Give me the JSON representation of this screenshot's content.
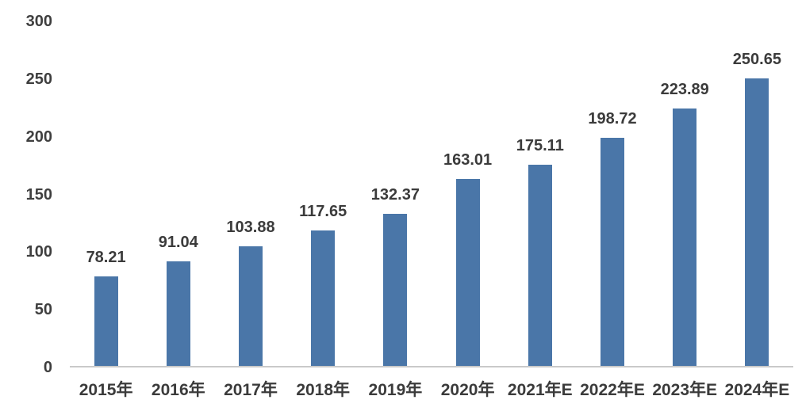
{
  "chart_data": {
    "type": "bar",
    "categories": [
      "2015年",
      "2016年",
      "2017年",
      "2018年",
      "2019年",
      "2020年",
      "2021年E",
      "2022年E",
      "2023年E",
      "2024年E"
    ],
    "values": [
      78.21,
      91.04,
      103.88,
      117.65,
      132.37,
      163.01,
      175.11,
      198.72,
      223.89,
      250.65
    ],
    "value_labels": [
      "78.21",
      "91.04",
      "103.88",
      "117.65",
      "132.37",
      "163.01",
      "175.11",
      "198.72",
      "223.89",
      "250.65"
    ],
    "title": "",
    "xlabel": "",
    "ylabel": "",
    "ylim": [
      0,
      300
    ],
    "y_ticks": [
      0,
      50,
      100,
      150,
      200,
      250,
      300
    ],
    "grid": false,
    "legend": false,
    "layout": {
      "bar_color": "#4a76a8",
      "axis_line_color": "#c9c9c9",
      "text_color": "#3b3b3b",
      "background": "#ffffff",
      "legend_position": "none",
      "data_labels": "above-bars"
    }
  }
}
